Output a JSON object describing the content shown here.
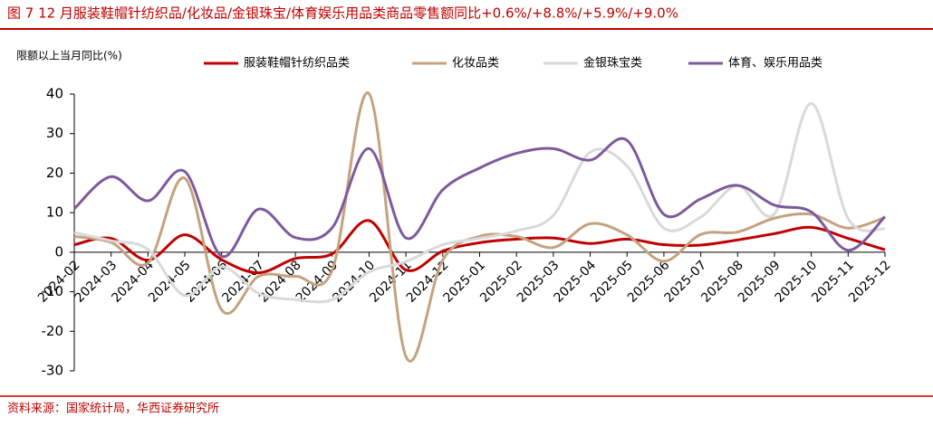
{
  "chart_data": {
    "type": "line",
    "title": "图 7   12 月服装鞋帽针纺织品/化妆品/金银珠宝/体育娱乐用品类商品零售额同比+0.6%/+8.8%/+5.9%/+9.0%",
    "y_label": "限额以上当月同比(%)",
    "source": "资料来源：国家统计局，华西证券研究所",
    "categories": [
      "2024-02",
      "2024-03",
      "2024-04",
      "2024-05",
      "2024-06",
      "2024-07",
      "2024-08",
      "2024-09",
      "2024-10",
      "2024-11",
      "2024-12",
      "2025-01",
      "2025-02",
      "2025-03",
      "2025-04",
      "2025-05",
      "2025-06",
      "2025-07",
      "2025-08",
      "2025-09",
      "2025-10",
      "2025-11",
      "2025-12"
    ],
    "series": [
      {
        "name": "服装鞋帽针纺织品类",
        "color": "#c00000",
        "values": [
          1.9,
          3.5,
          -2.0,
          4.4,
          -1.9,
          -5.2,
          -1.6,
          -0.4,
          8.0,
          -4.5,
          0.3,
          2.4,
          3.3,
          3.6,
          2.2,
          3.3,
          1.9,
          1.8,
          3.1,
          4.7,
          6.3,
          3.5,
          0.6
        ]
      },
      {
        "name": "化妆品类",
        "color": "#c4a27e",
        "values": [
          4.0,
          2.5,
          -2.7,
          18.7,
          -14.6,
          -6.1,
          -6.1,
          -4.5,
          40.1,
          -26.4,
          -1.9,
          4.0,
          4.0,
          1.2,
          7.2,
          4.4,
          -2.3,
          4.5,
          5.1,
          8.6,
          9.6,
          6.1,
          8.8
        ]
      },
      {
        "name": "金银珠宝类",
        "color": "#d9d9d9",
        "values": [
          5.0,
          2.9,
          0.7,
          -11.0,
          -3.7,
          -10.4,
          -12.0,
          -12.0,
          -5.0,
          -2.4,
          1.9,
          3.5,
          5.4,
          9.3,
          25.3,
          21.8,
          6.1,
          8.9,
          16.8,
          9.7,
          37.6,
          8.5,
          5.9
        ]
      },
      {
        "name": "体育、娱乐用品类",
        "color": "#7d5a9c",
        "values": [
          11.0,
          19.1,
          13.0,
          20.4,
          -1.0,
          10.9,
          3.7,
          6.2,
          26.2,
          3.6,
          15.8,
          21.3,
          25.0,
          26.2,
          23.3,
          28.3,
          9.6,
          13.5,
          16.9,
          11.9,
          10.2,
          0.5,
          9.0
        ]
      }
    ],
    "ylim": [
      -30,
      40
    ],
    "yticks": [
      -30,
      -20,
      -10,
      0,
      10,
      20,
      30,
      40
    ]
  }
}
